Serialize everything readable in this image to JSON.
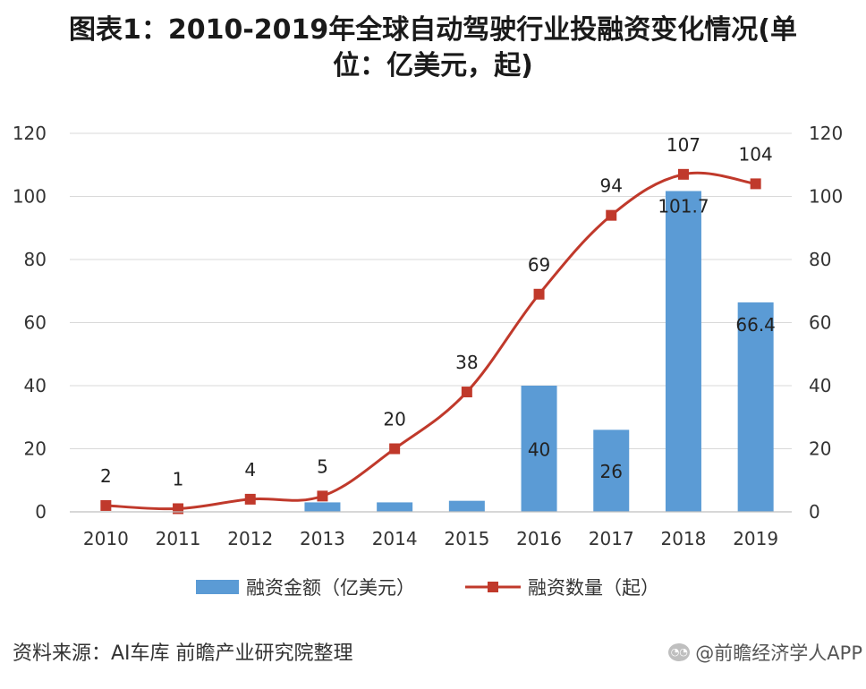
{
  "title_line1": "图表1：2010-2019年全球自动驾驶行业投融资变化情况(单",
  "title_line2": "位：亿美元，起)",
  "source": "资料来源：AI车库 前瞻产业研究院整理",
  "wechat_label": "@前瞻经济学人APP",
  "colors": {
    "bar": "#5b9bd5",
    "line": "#c0392b",
    "grid": "#d9d9d9"
  },
  "chart_data": {
    "type": "bar",
    "categories": [
      "2010",
      "2011",
      "2012",
      "2013",
      "2014",
      "2015",
      "2016",
      "2017",
      "2018",
      "2019"
    ],
    "series": [
      {
        "name": "融资金额（亿美元）",
        "type": "bar",
        "axis": "left",
        "values": [
          0,
          0,
          0,
          3,
          3,
          3.5,
          40,
          26,
          101.7,
          66.4
        ],
        "labels": [
          "",
          "",
          "",
          "",
          "",
          "",
          "40",
          "26",
          "101.7",
          "66.4"
        ]
      },
      {
        "name": "融资数量（起）",
        "type": "line",
        "axis": "right",
        "values": [
          2,
          1,
          4,
          5,
          20,
          38,
          69,
          94,
          107,
          104
        ],
        "labels": [
          "2",
          "1",
          "4",
          "5",
          "20",
          "38",
          "69",
          "94",
          "107",
          "104"
        ]
      }
    ],
    "ylim_left": [
      0,
      120
    ],
    "ylim_right": [
      0,
      120
    ],
    "yticks": [
      "0",
      "20",
      "40",
      "60",
      "80",
      "100",
      "120"
    ],
    "grid": true,
    "legend_position": "bottom"
  }
}
